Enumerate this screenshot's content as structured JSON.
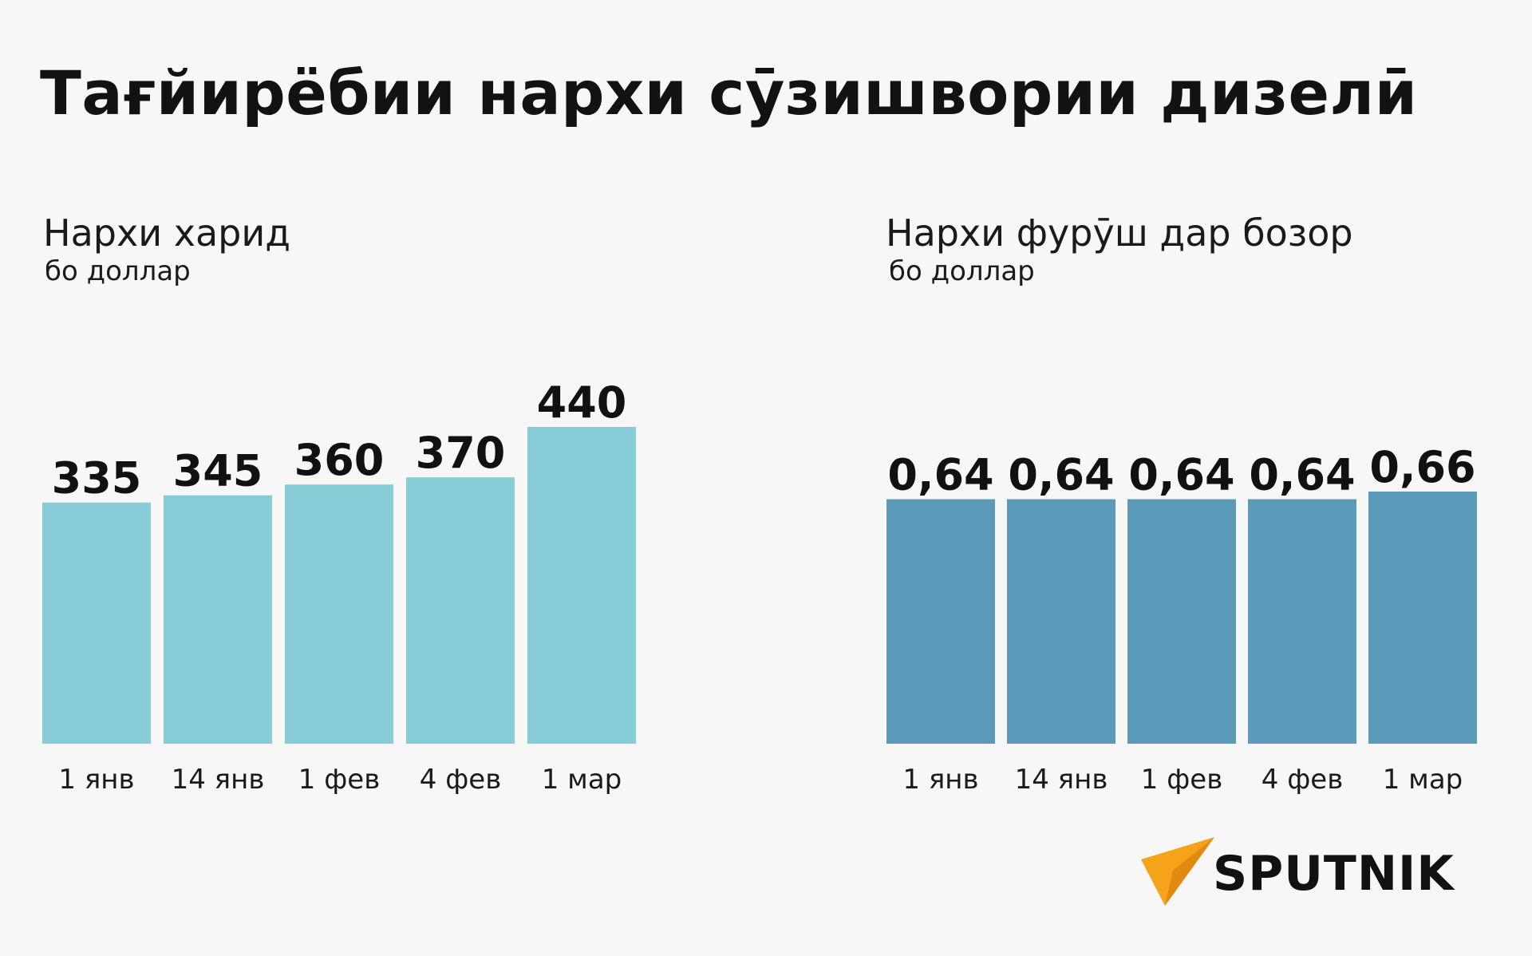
{
  "title": "Тағйирёбии нархи сӯзишвории дизелӣ",
  "brand": {
    "name": "SPUTNIK",
    "accent_color": "#f7a21b"
  },
  "colors": {
    "background": "#f7f7f7",
    "text": "#111111",
    "purchase_bar": "#87cdd8",
    "market_bar": "#5b9ab8"
  },
  "chart_data": [
    {
      "type": "bar",
      "title": "Нархи харид",
      "ylabel": "бо доллар",
      "xlabel": "",
      "categories": [
        "1 янв",
        "14 янв",
        "1 фев",
        "4 фев",
        "1 мар"
      ],
      "values": [
        335,
        345,
        360,
        370,
        440
      ],
      "value_labels": [
        "335",
        "345",
        "360",
        "370",
        "440"
      ],
      "ylim": [
        0,
        440
      ],
      "grid": false,
      "legend": "none",
      "color": "#87cdd8"
    },
    {
      "type": "bar",
      "title": "Нархи фурӯш дар бозор",
      "ylabel": "бо доллар",
      "xlabel": "",
      "categories": [
        "1 янв",
        "14 янв",
        "1 фев",
        "4 фев",
        "1 мар"
      ],
      "values": [
        0.64,
        0.64,
        0.64,
        0.64,
        0.66
      ],
      "value_labels": [
        "0,64",
        "0,64",
        "0,64",
        "0,64",
        "0,66"
      ],
      "ylim": [
        0,
        0.66
      ],
      "grid": false,
      "legend": "none",
      "color": "#5b9ab8"
    }
  ]
}
